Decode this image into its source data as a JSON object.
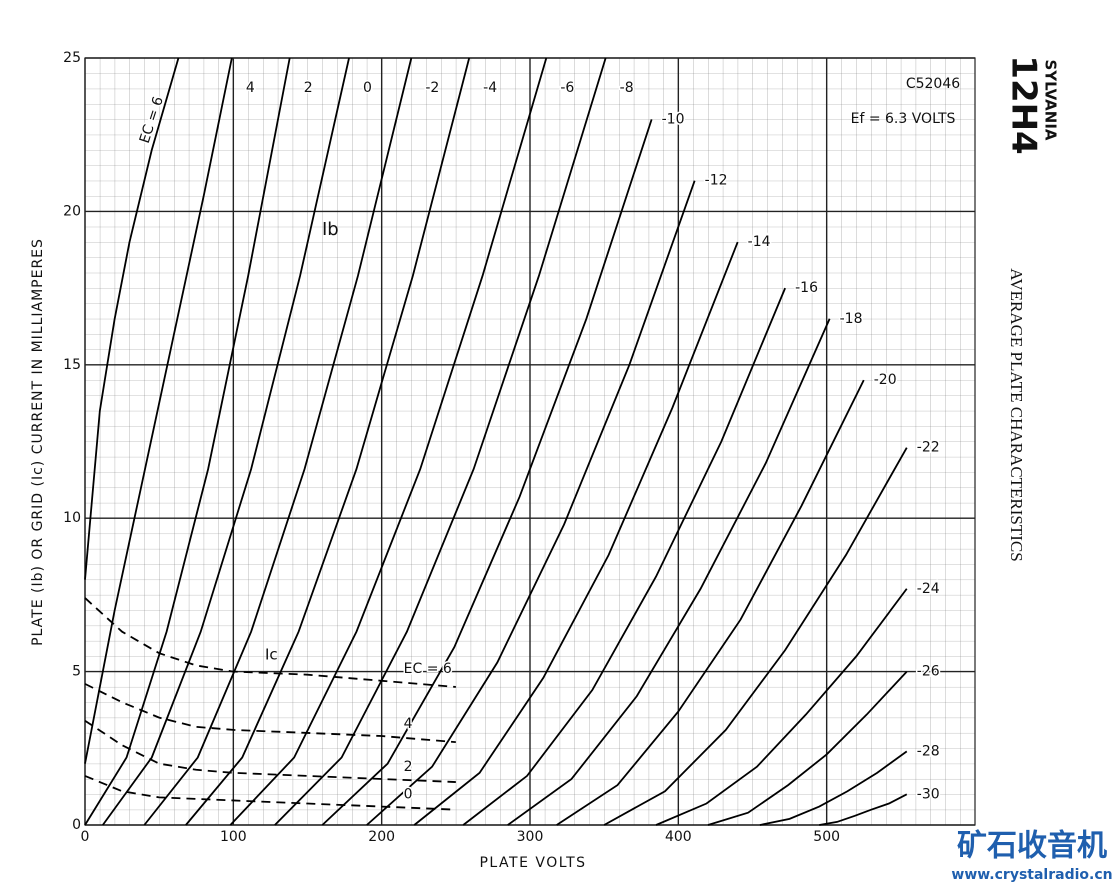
{
  "chart_data": {
    "type": "line",
    "brand": "SYLVANIA",
    "tube": "12H4",
    "title": "AVERAGE PLATE CHARACTERISTICS",
    "code": "C52046",
    "heater": "Ef = 6.3 VOLTS",
    "xlabel": "PLATE VOLTS",
    "ylabel": "PLATE (Ib) OR GRID (Ic) CURRENT IN MILLIAMPERES",
    "annotations": [
      "Ib",
      "Ic"
    ],
    "watermark": [
      "矿石收音机",
      "www.crystalradio.cn"
    ],
    "xlim": [
      0,
      600
    ],
    "ylim": [
      0,
      25
    ],
    "xticks": [
      0,
      100,
      200,
      300,
      400,
      500
    ],
    "yticks": [
      0,
      5,
      10,
      15,
      20,
      25
    ],
    "grid": true,
    "series": [
      {
        "name": "EC = 6",
        "color": "#000",
        "x": [
          0,
          10,
          20,
          30,
          45,
          63
        ],
        "values": [
          8,
          13.5,
          16.5,
          19,
          22,
          25
        ]
      },
      {
        "name": "4",
        "color": "#000",
        "x": [
          0,
          20,
          40,
          60,
          80,
          99
        ],
        "values": [
          2,
          7,
          11.5,
          16,
          20.5,
          25
        ]
      },
      {
        "name": "2",
        "color": "#000",
        "x": [
          0,
          28,
          55,
          83,
          110,
          138
        ],
        "values": [
          0,
          2.2,
          6.3,
          11.6,
          17.9,
          25
        ]
      },
      {
        "name": "0",
        "color": "#000",
        "x": [
          12,
          45,
          78,
          112,
          145,
          178
        ],
        "values": [
          0,
          2.2,
          6.3,
          11.6,
          17.9,
          25
        ]
      },
      {
        "name": "-2",
        "color": "#000",
        "x": [
          40,
          76,
          112,
          148,
          184,
          220
        ],
        "values": [
          0,
          2.2,
          6.3,
          11.6,
          17.9,
          25
        ]
      },
      {
        "name": "-4",
        "color": "#000",
        "x": [
          68,
          106,
          144,
          183,
          221,
          259
        ],
        "values": [
          0,
          2.2,
          6.3,
          11.6,
          17.9,
          25
        ]
      },
      {
        "name": "-6",
        "color": "#000",
        "x": [
          98,
          141,
          183,
          226,
          268,
          311
        ],
        "values": [
          0,
          2.2,
          6.3,
          11.6,
          17.9,
          25
        ]
      },
      {
        "name": "-8",
        "color": "#000",
        "x": [
          128,
          173,
          217,
          262,
          306,
          351
        ],
        "values": [
          0,
          2.2,
          6.3,
          11.6,
          17.9,
          25
        ]
      },
      {
        "name": "-10",
        "color": "#000",
        "x": [
          160,
          204,
          249,
          293,
          338,
          382
        ],
        "values": [
          0,
          2.0,
          5.8,
          10.7,
          16.5,
          23
        ]
      },
      {
        "name": "-12",
        "color": "#000",
        "x": [
          190,
          234,
          278,
          323,
          367,
          411
        ],
        "values": [
          0,
          1.9,
          5.3,
          9.8,
          15.0,
          21
        ]
      },
      {
        "name": "-14",
        "color": "#000",
        "x": [
          222,
          266,
          309,
          353,
          396,
          440
        ],
        "values": [
          0,
          1.7,
          4.8,
          8.8,
          13.6,
          19
        ]
      },
      {
        "name": "-16",
        "color": "#000",
        "x": [
          255,
          298,
          342,
          385,
          429,
          472
        ],
        "values": [
          0,
          1.6,
          4.4,
          8.1,
          12.5,
          17.5
        ]
      },
      {
        "name": "-18",
        "color": "#000",
        "x": [
          285,
          328,
          372,
          415,
          459,
          502
        ],
        "values": [
          0,
          1.5,
          4.2,
          7.7,
          11.8,
          16.5
        ]
      },
      {
        "name": "-20",
        "color": "#000",
        "x": [
          318,
          359,
          400,
          442,
          483,
          525
        ],
        "values": [
          0,
          1.3,
          3.7,
          6.7,
          10.4,
          14.5
        ]
      },
      {
        "name": "-22",
        "color": "#000",
        "x": [
          350,
          391,
          432,
          472,
          513,
          554
        ],
        "values": [
          0,
          1.1,
          3.1,
          5.7,
          8.8,
          12.3
        ]
      },
      {
        "name": "-24",
        "color": "#000",
        "x": [
          385,
          419,
          453,
          486,
          520,
          554
        ],
        "values": [
          0,
          0.7,
          1.9,
          3.6,
          5.5,
          7.7
        ]
      },
      {
        "name": "-26",
        "color": "#000",
        "x": [
          420,
          447,
          474,
          500,
          527,
          554
        ],
        "values": [
          0,
          0.4,
          1.3,
          2.3,
          3.6,
          5.0
        ]
      },
      {
        "name": "-28",
        "color": "#000",
        "x": [
          455,
          475,
          495,
          514,
          534,
          554
        ],
        "values": [
          0,
          0.2,
          0.6,
          1.1,
          1.7,
          2.4
        ]
      },
      {
        "name": "-30",
        "color": "#000",
        "x": [
          495,
          507,
          519,
          530,
          542,
          554
        ],
        "values": [
          0,
          0.1,
          0.3,
          0.5,
          0.7,
          1.0
        ]
      },
      {
        "name": "EC = 6",
        "color": "#000",
        "dashed": true,
        "x": [
          0,
          25,
          50,
          75,
          100,
          150,
          200,
          250
        ],
        "values": [
          7.4,
          6.3,
          5.6,
          5.2,
          5.0,
          4.9,
          4.7,
          4.5
        ]
      },
      {
        "name": "4",
        "color": "#000",
        "dashed": true,
        "x": [
          0,
          25,
          50,
          75,
          100,
          150,
          200,
          250
        ],
        "values": [
          4.6,
          4.0,
          3.5,
          3.2,
          3.1,
          3.0,
          2.9,
          2.7
        ]
      },
      {
        "name": "2",
        "color": "#000",
        "dashed": true,
        "x": [
          0,
          25,
          50,
          75,
          100,
          150,
          200,
          250
        ],
        "values": [
          3.4,
          2.6,
          2.0,
          1.8,
          1.7,
          1.6,
          1.5,
          1.4
        ]
      },
      {
        "name": "0",
        "color": "#000",
        "dashed": true,
        "x": [
          0,
          25,
          50,
          100,
          150,
          200,
          250
        ],
        "values": [
          1.6,
          1.1,
          0.9,
          0.8,
          0.7,
          0.6,
          0.5
        ]
      }
    ]
  }
}
